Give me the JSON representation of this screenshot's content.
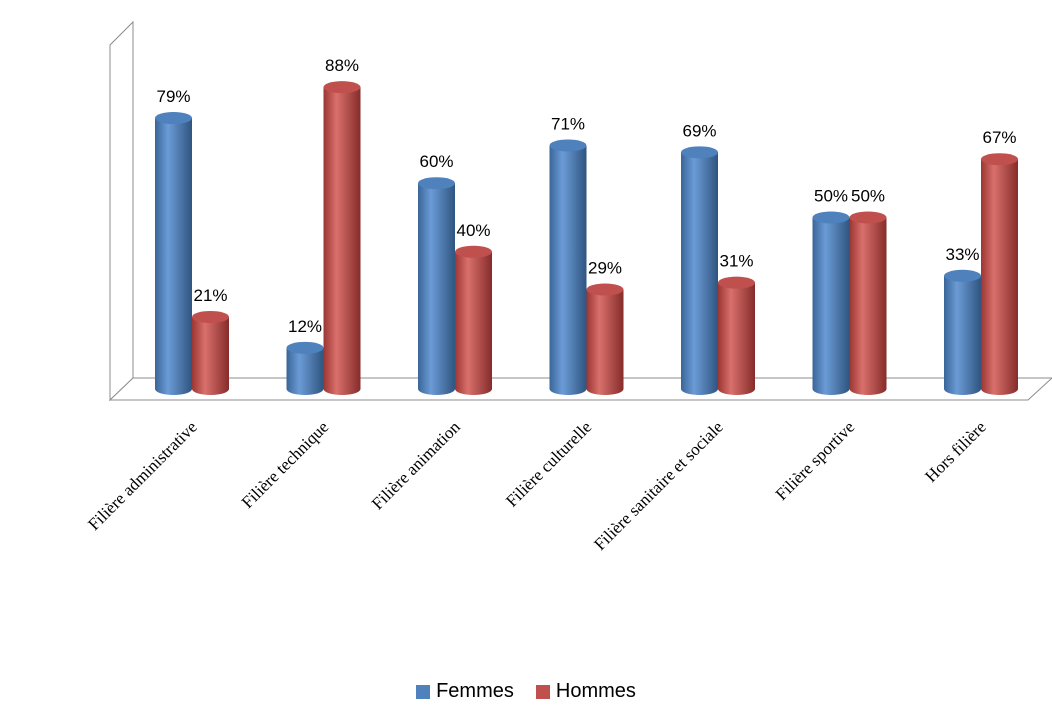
{
  "chart_data": {
    "type": "bar",
    "categories": [
      "Filière administrative",
      "Filière technique",
      "Filière animation",
      "Filière culturelle",
      "Filière sanitaire et  sociale",
      "Filière sportive",
      "Hors filière"
    ],
    "series": [
      {
        "name": "Femmes",
        "values": [
          79,
          12,
          60,
          71,
          69,
          50,
          33
        ],
        "labels": [
          "79%",
          "12%",
          "60%",
          "71%",
          "69%",
          "50%",
          "33%"
        ],
        "color": "#4F81BD"
      },
      {
        "name": "Hommes",
        "values": [
          21,
          88,
          40,
          29,
          31,
          50,
          67
        ],
        "labels": [
          "21%",
          "88%",
          "40%",
          "29%",
          "31%",
          "50%",
          "67%"
        ],
        "color": "#C0504D"
      }
    ],
    "ylim": [
      0,
      100
    ],
    "grid": false,
    "legend_position": "bottom",
    "style": "3d-cylinder"
  }
}
